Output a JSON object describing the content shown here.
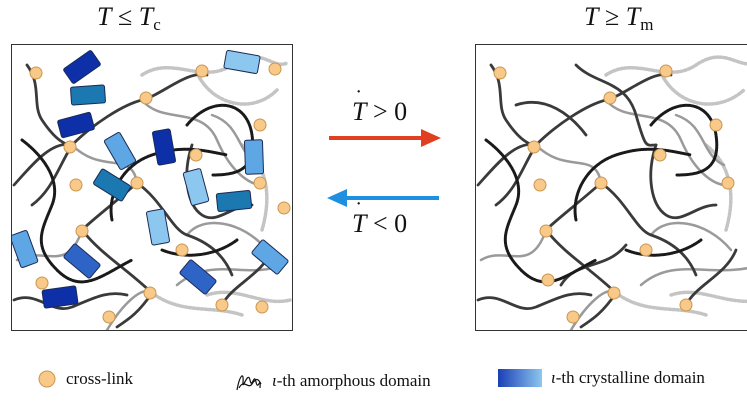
{
  "titles": {
    "left": {
      "var": "T",
      "rel": "≤",
      "sym": "T",
      "sub": "c"
    },
    "right": {
      "var": "T",
      "rel": "≥",
      "sym": "T",
      "sub": "m"
    }
  },
  "arrows": {
    "heating": {
      "var": "T",
      "dot": "˙",
      "rel": "> 0",
      "color": "#e0401f"
    },
    "cooling": {
      "var": "T",
      "dot": "˙",
      "rel": "< 0",
      "color": "#1f8fe0"
    }
  },
  "legend": {
    "crosslink": {
      "label": "cross-link",
      "color": "#f9c98a"
    },
    "amorphous": {
      "index": "ι",
      "label": "-th amorphous domain"
    },
    "crystalline": {
      "index": "ι",
      "label": "-th crystalline domain",
      "color_dark": "#1a3fb5",
      "color_light": "#8cc7f0"
    }
  },
  "colors": {
    "chain_dark": "#3a3a3a",
    "chain_mid": "#9a9a9a",
    "chain_light": "#c4c4c4",
    "crystal_shades": [
      "#0d2fa8",
      "#2f64c7",
      "#5ea6e4",
      "#1b78b0",
      "#8cc7f0"
    ]
  }
}
